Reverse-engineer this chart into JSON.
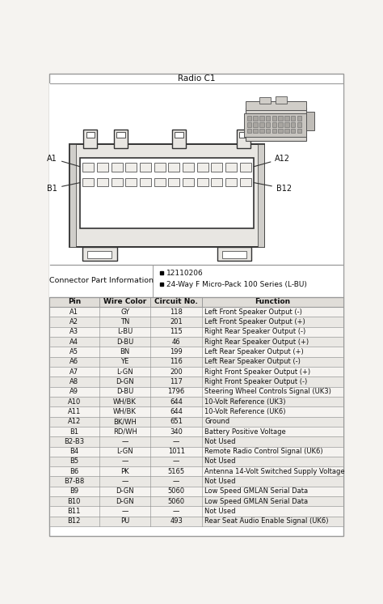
{
  "title": "Radio C1",
  "connector_info_label": "Connector Part Information",
  "connector_info_bullets": [
    "12110206",
    "24-Way F Micro-Pack 100 Series (L-BU)"
  ],
  "table_headers": [
    "Pin",
    "Wire Color",
    "Circuit No.",
    "Function"
  ],
  "table_rows": [
    [
      "A1",
      "GY",
      "118",
      "Left Front Speaker Output (-)"
    ],
    [
      "A2",
      "TN",
      "201",
      "Left Front Speaker Output (+)"
    ],
    [
      "A3",
      "L-BU",
      "115",
      "Right Rear Speaker Output (-)"
    ],
    [
      "A4",
      "D-BU",
      "46",
      "Right Rear Speaker Output (+)"
    ],
    [
      "A5",
      "BN",
      "199",
      "Left Rear Speaker Output (+)"
    ],
    [
      "A6",
      "YE",
      "116",
      "Left Rear Speaker Output (-)"
    ],
    [
      "A7",
      "L-GN",
      "200",
      "Right Front Speaker Output (+)"
    ],
    [
      "A8",
      "D-GN",
      "117",
      "Right Front Speaker Output (-)"
    ],
    [
      "A9",
      "D-BU",
      "1796",
      "Steering Wheel Controls Signal (UK3)"
    ],
    [
      "A10",
      "WH/BK",
      "644",
      "10-Volt Reference (UK3)"
    ],
    [
      "A11",
      "WH/BK",
      "644",
      "10-Volt Reference (UK6)"
    ],
    [
      "A12",
      "BK/WH",
      "651",
      "Ground"
    ],
    [
      "B1",
      "RD/WH",
      "340",
      "Battery Positive Voltage"
    ],
    [
      "B2-B3",
      "—",
      "—",
      "Not Used"
    ],
    [
      "B4",
      "L-GN",
      "1011",
      "Remote Radio Control Signal (UK6)"
    ],
    [
      "B5",
      "—",
      "—",
      "Not Used"
    ],
    [
      "B6",
      "PK",
      "5165",
      "Antenna 14-Volt Switched Supply Voltage"
    ],
    [
      "B7-B8",
      "—",
      "—",
      "Not Used"
    ],
    [
      "B9",
      "D-GN",
      "5060",
      "Low Speed GMLAN Serial Data"
    ],
    [
      "B10",
      "D-GN",
      "5060",
      "Low Speed GMLAN Serial Data"
    ],
    [
      "B11",
      "—",
      "—",
      "Not Used"
    ],
    [
      "B12",
      "PU",
      "493",
      "Rear Seat Audio Enable Signal (UK6)"
    ]
  ],
  "bg_color": "#f5f3f0",
  "border_color": "#999999",
  "header_bg": "#e0ddd8",
  "row_bg_even": "#f5f3f0",
  "row_bg_odd": "#eae8e4",
  "text_color": "#111111",
  "diag_bg": "#ffffff",
  "conn_outline": "#333333",
  "conn_fill": "#e8e6e2",
  "pin_fill": "#f0eeea",
  "pin_outline": "#555555"
}
